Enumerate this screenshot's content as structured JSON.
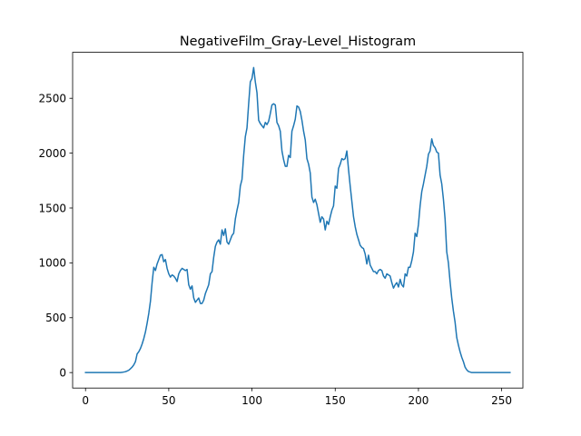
{
  "chart_data": {
    "type": "line",
    "title": "NegativeFilm_Gray-Level_Histogram",
    "xlabel": "",
    "ylabel": "",
    "xlim": [
      -7.75,
      262.75
    ],
    "ylim": [
      -141,
      2919
    ],
    "grid": false,
    "x_ticks": [
      0,
      50,
      100,
      150,
      200,
      250
    ],
    "y_ticks": [
      0,
      500,
      1000,
      1500,
      2000,
      2500
    ],
    "line_color": "#1f77b4",
    "series": [
      {
        "x": [
          0,
          1,
          2,
          3,
          4,
          5,
          6,
          7,
          8,
          9,
          10,
          11,
          12,
          13,
          14,
          15,
          16,
          17,
          18,
          19,
          20,
          21,
          22,
          23,
          24,
          25,
          26,
          27,
          28,
          29,
          30,
          31,
          32,
          33,
          34,
          35,
          36,
          37,
          38,
          39,
          40,
          41,
          42,
          43,
          44,
          45,
          46,
          47,
          48,
          49,
          50,
          51,
          52,
          53,
          54,
          55,
          56,
          57,
          58,
          59,
          60,
          61,
          62,
          63,
          64,
          65,
          66,
          67,
          68,
          69,
          70,
          71,
          72,
          73,
          74,
          75,
          76,
          77,
          78,
          79,
          80,
          81,
          82,
          83,
          84,
          85,
          86,
          87,
          88,
          89,
          90,
          91,
          92,
          93,
          94,
          95,
          96,
          97,
          98,
          99,
          100,
          101,
          102,
          103,
          104,
          105,
          106,
          107,
          108,
          109,
          110,
          111,
          112,
          113,
          114,
          115,
          116,
          117,
          118,
          119,
          120,
          121,
          122,
          123,
          124,
          125,
          126,
          127,
          128,
          129,
          130,
          131,
          132,
          133,
          134,
          135,
          136,
          137,
          138,
          139,
          140,
          141,
          142,
          143,
          144,
          145,
          146,
          147,
          148,
          149,
          150,
          151,
          152,
          153,
          154,
          155,
          156,
          157,
          158,
          159,
          160,
          161,
          162,
          163,
          164,
          165,
          166,
          167,
          168,
          169,
          170,
          171,
          172,
          173,
          174,
          175,
          176,
          177,
          178,
          179,
          180,
          181,
          182,
          183,
          184,
          185,
          186,
          187,
          188,
          189,
          190,
          191,
          192,
          193,
          194,
          195,
          196,
          197,
          198,
          199,
          200,
          201,
          202,
          203,
          204,
          205,
          206,
          207,
          208,
          209,
          210,
          211,
          212,
          213,
          214,
          215,
          216,
          217,
          218,
          219,
          220,
          221,
          222,
          223,
          224,
          225,
          226,
          227,
          228,
          229,
          230,
          231,
          232,
          233,
          234,
          235,
          236,
          237,
          238,
          239,
          240,
          241,
          242,
          243,
          244,
          245,
          246,
          247,
          248,
          249,
          250,
          251,
          252,
          253,
          254,
          255
        ],
        "y": [
          0,
          0,
          0,
          0,
          0,
          0,
          0,
          0,
          0,
          0,
          0,
          0,
          0,
          0,
          0,
          0,
          0,
          0,
          0,
          0,
          0,
          0,
          2,
          5,
          8,
          14,
          22,
          35,
          50,
          70,
          100,
          170,
          190,
          220,
          260,
          310,
          370,
          450,
          540,
          650,
          820,
          960,
          930,
          990,
          1030,
          1070,
          1075,
          1010,
          1030,
          950,
          900,
          870,
          890,
          880,
          860,
          830,
          900,
          930,
          950,
          940,
          930,
          940,
          800,
          760,
          790,
          680,
          640,
          660,
          680,
          630,
          630,
          660,
          720,
          760,
          800,
          900,
          920,
          1050,
          1150,
          1190,
          1210,
          1170,
          1300,
          1250,
          1310,
          1190,
          1170,
          1210,
          1250,
          1270,
          1400,
          1480,
          1550,
          1700,
          1760,
          1980,
          2150,
          2230,
          2450,
          2650,
          2680,
          2780,
          2650,
          2550,
          2300,
          2270,
          2250,
          2230,
          2280,
          2260,
          2290,
          2360,
          2440,
          2450,
          2440,
          2280,
          2250,
          2200,
          2020,
          1940,
          1880,
          1880,
          1980,
          1960,
          2200,
          2250,
          2310,
          2430,
          2420,
          2380,
          2300,
          2200,
          2120,
          1950,
          1900,
          1820,
          1600,
          1550,
          1580,
          1530,
          1450,
          1370,
          1420,
          1400,
          1300,
          1380,
          1350,
          1420,
          1480,
          1520,
          1700,
          1680,
          1860,
          1900,
          1950,
          1940,
          1950,
          2020,
          1850,
          1700,
          1560,
          1420,
          1330,
          1260,
          1210,
          1160,
          1140,
          1130,
          1080,
          990,
          1070,
          980,
          950,
          920,
          920,
          900,
          930,
          940,
          930,
          880,
          860,
          900,
          890,
          880,
          820,
          770,
          800,
          820,
          780,
          850,
          800,
          780,
          900,
          880,
          960,
          960,
          1020,
          1100,
          1270,
          1240,
          1350,
          1520,
          1650,
          1720,
          1800,
          1880,
          1990,
          2020,
          2130,
          2070,
          2050,
          2010,
          2000,
          1800,
          1720,
          1580,
          1400,
          1100,
          1000,
          830,
          680,
          560,
          460,
          320,
          250,
          190,
          140,
          100,
          50,
          25,
          10,
          5,
          0,
          0,
          0,
          0,
          0,
          0,
          0,
          0,
          0,
          0,
          0,
          0,
          0,
          0,
          0,
          0,
          0,
          0,
          0,
          0,
          0,
          0,
          0,
          0
        ]
      }
    ]
  }
}
